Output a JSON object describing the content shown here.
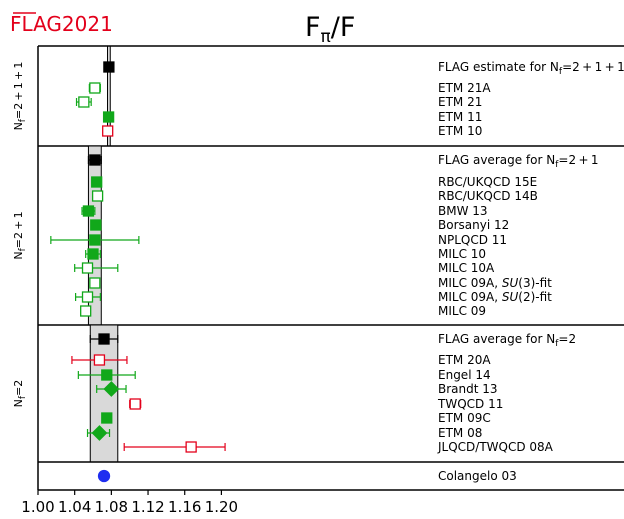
{
  "logo": {
    "text": "FLAG2021",
    "color": "#e3001b"
  },
  "chart_data": {
    "type": "scatter",
    "title_main": "F",
    "title_sub": "π",
    "title_tail": "/F",
    "xlim": [
      1.0,
      1.24
    ],
    "xticks": [
      "1.00",
      "1.04",
      "1.08",
      "1.12",
      "1.16",
      "1.20"
    ],
    "tick_values": [
      1.0,
      1.04,
      1.08,
      1.12,
      1.16,
      1.2
    ],
    "colors": {
      "flag": "#000000",
      "green": "#11a81a",
      "red": "#e3001b",
      "blue": "#1f2ef0",
      "band": "#d9d9d9"
    },
    "groups": [
      {
        "label": "Nf=2+1+1",
        "band": [
          1.0758,
          1.0788
        ],
        "rows": [
          {
            "label": "FLAG estimate for Nf=2+1+1",
            "x": 1.0773,
            "lo": 1.0758,
            "hi": 1.0788,
            "marker": "square",
            "fill": "filled",
            "color": "flag"
          },
          {
            "label": "ETM 21A",
            "x": 1.062,
            "lo": 1.056,
            "hi": 1.068,
            "marker": "square",
            "fill": "open",
            "color": "green"
          },
          {
            "label": "ETM 21",
            "x": 1.05,
            "lo": 1.042,
            "hi": 1.058,
            "marker": "square",
            "fill": "open",
            "color": "green"
          },
          {
            "label": "ETM 11",
            "x": 1.077,
            "lo": 1.076,
            "hi": 1.078,
            "marker": "square",
            "fill": "filled",
            "color": "green"
          },
          {
            "label": "ETM 10",
            "x": 1.076,
            "lo": 1.075,
            "hi": 1.077,
            "marker": "square",
            "fill": "open",
            "color": "red"
          }
        ]
      },
      {
        "label": "Nf=2+1",
        "band": [
          1.055,
          1.069
        ],
        "rows": [
          {
            "label": "FLAG average for Nf=2+1",
            "x": 1.062,
            "lo": 1.055,
            "hi": 1.069,
            "marker": "square",
            "fill": "filled",
            "color": "flag"
          },
          {
            "label": "RBC/UKQCD 15E",
            "x": 1.064,
            "lo": 1.06,
            "hi": 1.068,
            "marker": "square",
            "fill": "filled",
            "color": "green"
          },
          {
            "label": "RBC/UKQCD 14B",
            "x": 1.065,
            "lo": 1.064,
            "hi": 1.066,
            "marker": "square",
            "fill": "open",
            "color": "green"
          },
          {
            "label": "BMW 13",
            "x": 1.055,
            "lo": 1.048,
            "hi": 1.062,
            "marker": "square",
            "fill": "filled",
            "color": "green"
          },
          {
            "label": "Borsanyi 12",
            "x": 1.063,
            "lo": 1.062,
            "hi": 1.064,
            "marker": "square",
            "fill": "filled",
            "color": "green"
          },
          {
            "label": "NPLQCD 11",
            "x": 1.062,
            "lo": 1.014,
            "hi": 1.11,
            "marker": "square",
            "fill": "filled",
            "color": "green"
          },
          {
            "label": "MILC 10",
            "x": 1.06,
            "lo": 1.052,
            "hi": 1.068,
            "marker": "square",
            "fill": "filled",
            "color": "green"
          },
          {
            "label": "MILC 10A",
            "x": 1.054,
            "lo": 1.04,
            "hi": 1.087,
            "marker": "square",
            "fill": "open",
            "color": "green"
          },
          {
            "label": "MILC 09A, SU(3)-fit",
            "x": 1.062,
            "lo": 1.061,
            "hi": 1.063,
            "marker": "square",
            "fill": "open",
            "color": "green"
          },
          {
            "label": "MILC 09A, SU(2)-fit",
            "x": 1.054,
            "lo": 1.041,
            "hi": 1.068,
            "marker": "square",
            "fill": "open",
            "color": "green"
          },
          {
            "label": "MILC 09",
            "x": 1.052,
            "lo": 1.048,
            "hi": 1.056,
            "marker": "square",
            "fill": "open",
            "color": "green"
          }
        ]
      },
      {
        "label": "Nf=2",
        "band": [
          1.057,
          1.087
        ],
        "rows": [
          {
            "label": "FLAG average for Nf=2",
            "x": 1.072,
            "lo": 1.057,
            "hi": 1.087,
            "marker": "square",
            "fill": "filled",
            "color": "flag"
          },
          {
            "label": "ETM 20A",
            "x": 1.067,
            "lo": 1.037,
            "hi": 1.097,
            "marker": "square",
            "fill": "open",
            "color": "red"
          },
          {
            "label": "Engel 14",
            "x": 1.075,
            "lo": 1.044,
            "hi": 1.106,
            "marker": "square",
            "fill": "filled",
            "color": "green"
          },
          {
            "label": "Brandt 13",
            "x": 1.08,
            "lo": 1.064,
            "hi": 1.096,
            "marker": "diamond",
            "fill": "filled",
            "color": "green"
          },
          {
            "label": "TWQCD 11",
            "x": 1.106,
            "lo": 1.1,
            "hi": 1.112,
            "marker": "square",
            "fill": "open",
            "color": "red"
          },
          {
            "label": "ETM 09C",
            "x": 1.075,
            "lo": 1.074,
            "hi": 1.076,
            "marker": "square",
            "fill": "filled",
            "color": "green"
          },
          {
            "label": "ETM 08",
            "x": 1.067,
            "lo": 1.054,
            "hi": 1.078,
            "marker": "diamond",
            "fill": "filled",
            "color": "green"
          },
          {
            "label": "JLQCD/TWQCD 08A",
            "x": 1.167,
            "lo": 1.094,
            "hi": 1.204,
            "marker": "square",
            "fill": "open",
            "color": "red"
          }
        ]
      },
      {
        "label": "",
        "band": null,
        "rows": [
          {
            "label": "Colangelo 03",
            "x": 1.072,
            "lo": 1.069,
            "hi": 1.075,
            "marker": "circle",
            "fill": "filled",
            "color": "blue"
          }
        ]
      }
    ]
  }
}
